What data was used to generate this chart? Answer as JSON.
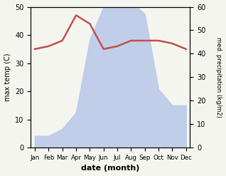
{
  "months": [
    "Jan",
    "Feb",
    "Mar",
    "Apr",
    "May",
    "Jun",
    "Jul",
    "Aug",
    "Sep",
    "Oct",
    "Nov",
    "Dec"
  ],
  "temp": [
    35,
    36,
    38,
    47,
    44,
    35,
    36,
    38,
    38,
    38,
    37,
    35
  ],
  "precip": [
    5,
    5,
    8,
    15,
    46,
    60,
    62,
    62,
    57,
    25,
    18,
    18
  ],
  "temp_ylim": [
    0,
    50
  ],
  "precip_ylim": [
    0,
    60
  ],
  "temp_color": "#c0504d",
  "precip_fill_color": "#b8c8e8",
  "precip_fill_alpha": 0.85,
  "ylabel_left": "max temp (C)",
  "ylabel_right": "med. precipitation (kg/m2)",
  "xlabel": "date (month)",
  "temp_linewidth": 1.8,
  "left_yticks": [
    0,
    10,
    20,
    30,
    40,
    50
  ],
  "right_yticks": [
    0,
    10,
    20,
    30,
    40,
    50,
    60
  ]
}
